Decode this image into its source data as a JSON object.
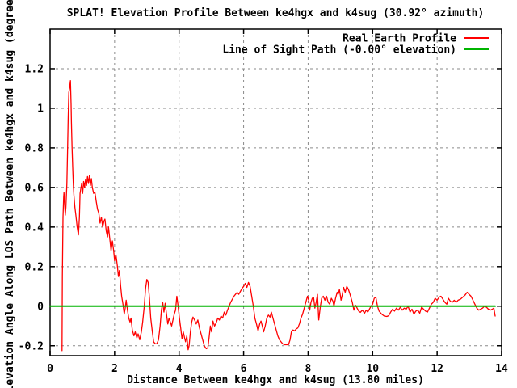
{
  "window": {
    "background": "#ffffff"
  },
  "colors": {
    "profile_red": "#ff0000",
    "los_green": "#00b400",
    "grid": "#8a8a8a",
    "border": "#000000",
    "text": "#000000"
  },
  "chart_data": {
    "type": "line",
    "title": "SPLAT! Elevation Profile Between ke4hgx and k4sug (30.92° azimuth)",
    "xlabel": "Distance Between ke4hgx and k4sug (13.80 miles)",
    "ylabel": "Elevation Angle Along LOS Path Between ke4hgx and k4sug (degrees)",
    "xlim": [
      0,
      14
    ],
    "ylim": [
      -0.25,
      1.4
    ],
    "grid": true,
    "legend_position": "top-right",
    "x_ticks": [
      {
        "v": 0,
        "label": "0"
      },
      {
        "v": 2,
        "label": "2"
      },
      {
        "v": 4,
        "label": "4"
      },
      {
        "v": 6,
        "label": "6"
      },
      {
        "v": 8,
        "label": "8"
      },
      {
        "v": 10,
        "label": "10"
      },
      {
        "v": 12,
        "label": "12"
      },
      {
        "v": 14,
        "label": "14"
      }
    ],
    "y_ticks": [
      {
        "v": -0.2,
        "label": "-0.2"
      },
      {
        "v": 0,
        "label": "0"
      },
      {
        "v": 0.2,
        "label": "0.2"
      },
      {
        "v": 0.4,
        "label": "0.4"
      },
      {
        "v": 0.6,
        "label": "0.6"
      },
      {
        "v": 0.8,
        "label": "0.8"
      },
      {
        "v": 1.0,
        "label": "1"
      },
      {
        "v": 1.2,
        "label": "1.2"
      }
    ],
    "series": [
      {
        "id": "real-earth-profile",
        "name": "Real Earth Profile",
        "color": "#ff0000",
        "width": 1.3,
        "points": [
          [
            0.37,
            -0.225
          ],
          [
            0.38,
            0.15
          ],
          [
            0.4,
            0.45
          ],
          [
            0.42,
            0.55
          ],
          [
            0.43,
            0.575
          ],
          [
            0.45,
            0.52
          ],
          [
            0.47,
            0.46
          ],
          [
            0.49,
            0.5
          ],
          [
            0.52,
            0.62
          ],
          [
            0.54,
            0.78
          ],
          [
            0.56,
            0.95
          ],
          [
            0.58,
            1.08
          ],
          [
            0.6,
            1.1
          ],
          [
            0.63,
            1.14
          ],
          [
            0.65,
            1.02
          ],
          [
            0.66,
            0.93
          ],
          [
            0.68,
            0.8
          ],
          [
            0.7,
            0.7
          ],
          [
            0.72,
            0.62
          ],
          [
            0.74,
            0.56
          ],
          [
            0.77,
            0.5
          ],
          [
            0.8,
            0.46
          ],
          [
            0.84,
            0.4
          ],
          [
            0.88,
            0.36
          ],
          [
            0.91,
            0.45
          ],
          [
            0.93,
            0.57
          ],
          [
            0.96,
            0.6
          ],
          [
            0.98,
            0.62
          ],
          [
            1.01,
            0.57
          ],
          [
            1.04,
            0.63
          ],
          [
            1.07,
            0.6
          ],
          [
            1.1,
            0.64
          ],
          [
            1.13,
            0.61
          ],
          [
            1.16,
            0.655
          ],
          [
            1.19,
            0.62
          ],
          [
            1.22,
            0.66
          ],
          [
            1.25,
            0.61
          ],
          [
            1.28,
            0.645
          ],
          [
            1.31,
            0.6
          ],
          [
            1.35,
            0.57
          ],
          [
            1.39,
            0.575
          ],
          [
            1.43,
            0.53
          ],
          [
            1.47,
            0.49
          ],
          [
            1.51,
            0.47
          ],
          [
            1.55,
            0.42
          ],
          [
            1.59,
            0.45
          ],
          [
            1.63,
            0.4
          ],
          [
            1.67,
            0.43
          ],
          [
            1.7,
            0.44
          ],
          [
            1.74,
            0.38
          ],
          [
            1.78,
            0.35
          ],
          [
            1.81,
            0.4
          ],
          [
            1.85,
            0.34
          ],
          [
            1.89,
            0.28
          ],
          [
            1.93,
            0.33
          ],
          [
            1.97,
            0.28
          ],
          [
            2.0,
            0.23
          ],
          [
            2.04,
            0.26
          ],
          [
            2.08,
            0.21
          ],
          [
            2.12,
            0.15
          ],
          [
            2.15,
            0.18
          ],
          [
            2.19,
            0.1
          ],
          [
            2.22,
            0.05
          ],
          [
            2.26,
            0.01
          ],
          [
            2.3,
            -0.04
          ],
          [
            2.33,
            -0.01
          ],
          [
            2.36,
            0.03
          ],
          [
            2.4,
            -0.02
          ],
          [
            2.44,
            -0.06
          ],
          [
            2.48,
            -0.08
          ],
          [
            2.51,
            -0.06
          ],
          [
            2.55,
            -0.12
          ],
          [
            2.6,
            -0.15
          ],
          [
            2.64,
            -0.13
          ],
          [
            2.69,
            -0.16
          ],
          [
            2.73,
            -0.14
          ],
          [
            2.78,
            -0.17
          ],
          [
            2.83,
            -0.13
          ],
          [
            2.87,
            -0.08
          ],
          [
            2.92,
            0.0
          ],
          [
            2.96,
            0.09
          ],
          [
            3.0,
            0.135
          ],
          [
            3.04,
            0.12
          ],
          [
            3.08,
            0.04
          ],
          [
            3.12,
            -0.06
          ],
          [
            3.17,
            -0.13
          ],
          [
            3.21,
            -0.18
          ],
          [
            3.26,
            -0.19
          ],
          [
            3.31,
            -0.19
          ],
          [
            3.36,
            -0.17
          ],
          [
            3.41,
            -0.1
          ],
          [
            3.45,
            -0.02
          ],
          [
            3.49,
            0.02
          ],
          [
            3.53,
            -0.03
          ],
          [
            3.57,
            0.015
          ],
          [
            3.61,
            -0.04
          ],
          [
            3.65,
            -0.09
          ],
          [
            3.69,
            -0.06
          ],
          [
            3.73,
            -0.08
          ],
          [
            3.77,
            -0.1
          ],
          [
            3.81,
            -0.07
          ],
          [
            3.85,
            -0.04
          ],
          [
            3.89,
            -0.02
          ],
          [
            3.93,
            0.05
          ],
          [
            3.97,
            0.0
          ],
          [
            4.01,
            -0.06
          ],
          [
            4.05,
            -0.11
          ],
          [
            4.09,
            -0.165
          ],
          [
            4.13,
            -0.13
          ],
          [
            4.17,
            -0.16
          ],
          [
            4.2,
            -0.18
          ],
          [
            4.24,
            -0.15
          ],
          [
            4.28,
            -0.22
          ],
          [
            4.31,
            -0.2
          ],
          [
            4.35,
            -0.13
          ],
          [
            4.39,
            -0.08
          ],
          [
            4.43,
            -0.055
          ],
          [
            4.48,
            -0.07
          ],
          [
            4.53,
            -0.09
          ],
          [
            4.58,
            -0.07
          ],
          [
            4.63,
            -0.11
          ],
          [
            4.68,
            -0.14
          ],
          [
            4.73,
            -0.17
          ],
          [
            4.78,
            -0.2
          ],
          [
            4.84,
            -0.215
          ],
          [
            4.89,
            -0.21
          ],
          [
            4.93,
            -0.16
          ],
          [
            4.97,
            -0.1
          ],
          [
            5.01,
            -0.13
          ],
          [
            5.05,
            -0.075
          ],
          [
            5.1,
            -0.1
          ],
          [
            5.15,
            -0.085
          ],
          [
            5.2,
            -0.06
          ],
          [
            5.25,
            -0.07
          ],
          [
            5.3,
            -0.05
          ],
          [
            5.35,
            -0.06
          ],
          [
            5.4,
            -0.03
          ],
          [
            5.45,
            -0.045
          ],
          [
            5.5,
            -0.02
          ],
          [
            5.55,
            0.0
          ],
          [
            5.6,
            0.02
          ],
          [
            5.65,
            0.035
          ],
          [
            5.7,
            0.05
          ],
          [
            5.75,
            0.06
          ],
          [
            5.8,
            0.07
          ],
          [
            5.85,
            0.06
          ],
          [
            5.9,
            0.075
          ],
          [
            5.95,
            0.09
          ],
          [
            6.0,
            0.1
          ],
          [
            6.05,
            0.115
          ],
          [
            6.1,
            0.095
          ],
          [
            6.15,
            0.12
          ],
          [
            6.2,
            0.1
          ],
          [
            6.25,
            0.05
          ],
          [
            6.3,
            0.0
          ],
          [
            6.35,
            -0.06
          ],
          [
            6.4,
            -0.09
          ],
          [
            6.45,
            -0.125
          ],
          [
            6.5,
            -0.09
          ],
          [
            6.54,
            -0.075
          ],
          [
            6.58,
            -0.1
          ],
          [
            6.62,
            -0.13
          ],
          [
            6.67,
            -0.1
          ],
          [
            6.72,
            -0.06
          ],
          [
            6.77,
            -0.045
          ],
          [
            6.82,
            -0.055
          ],
          [
            6.86,
            -0.03
          ],
          [
            6.91,
            -0.06
          ],
          [
            6.96,
            -0.09
          ],
          [
            7.01,
            -0.12
          ],
          [
            7.06,
            -0.15
          ],
          [
            7.11,
            -0.17
          ],
          [
            7.16,
            -0.18
          ],
          [
            7.21,
            -0.19
          ],
          [
            7.27,
            -0.195
          ],
          [
            7.33,
            -0.195
          ],
          [
            7.39,
            -0.195
          ],
          [
            7.44,
            -0.17
          ],
          [
            7.48,
            -0.13
          ],
          [
            7.53,
            -0.12
          ],
          [
            7.58,
            -0.125
          ],
          [
            7.63,
            -0.115
          ],
          [
            7.68,
            -0.11
          ],
          [
            7.73,
            -0.09
          ],
          [
            7.78,
            -0.06
          ],
          [
            7.83,
            -0.04
          ],
          [
            7.88,
            -0.01
          ],
          [
            7.93,
            0.02
          ],
          [
            7.98,
            0.05
          ],
          [
            8.02,
            0.03
          ],
          [
            8.05,
            -0.02
          ],
          [
            8.09,
            0.02
          ],
          [
            8.13,
            0.04
          ],
          [
            8.17,
            0.045
          ],
          [
            8.21,
            -0.01
          ],
          [
            8.25,
            0.02
          ],
          [
            8.29,
            0.06
          ],
          [
            8.33,
            -0.07
          ],
          [
            8.38,
            0.0
          ],
          [
            8.42,
            0.04
          ],
          [
            8.47,
            0.05
          ],
          [
            8.52,
            0.03
          ],
          [
            8.57,
            0.05
          ],
          [
            8.62,
            0.02
          ],
          [
            8.67,
            0.01
          ],
          [
            8.72,
            0.04
          ],
          [
            8.77,
            0.025
          ],
          [
            8.8,
            0.0
          ],
          [
            8.85,
            0.04
          ],
          [
            8.9,
            0.07
          ],
          [
            8.93,
            0.06
          ],
          [
            8.97,
            0.084
          ],
          [
            9.02,
            0.03
          ],
          [
            9.06,
            0.06
          ],
          [
            9.1,
            0.095
          ],
          [
            9.15,
            0.07
          ],
          [
            9.2,
            0.1
          ],
          [
            9.25,
            0.085
          ],
          [
            9.3,
            0.06
          ],
          [
            9.37,
            0.02
          ],
          [
            9.42,
            -0.02
          ],
          [
            9.47,
            0.005
          ],
          [
            9.52,
            -0.01
          ],
          [
            9.57,
            -0.025
          ],
          [
            9.62,
            -0.031
          ],
          [
            9.68,
            -0.02
          ],
          [
            9.75,
            -0.035
          ],
          [
            9.8,
            -0.02
          ],
          [
            9.85,
            -0.03
          ],
          [
            9.9,
            -0.015
          ],
          [
            9.95,
            0.0
          ],
          [
            10.0,
            0.01
          ],
          [
            10.05,
            0.04
          ],
          [
            10.1,
            0.045
          ],
          [
            10.15,
            0.0
          ],
          [
            10.2,
            -0.025
          ],
          [
            10.28,
            -0.04
          ],
          [
            10.36,
            -0.05
          ],
          [
            10.44,
            -0.052
          ],
          [
            10.5,
            -0.048
          ],
          [
            10.56,
            -0.03
          ],
          [
            10.62,
            -0.015
          ],
          [
            10.68,
            -0.025
          ],
          [
            10.74,
            -0.01
          ],
          [
            10.8,
            -0.02
          ],
          [
            10.86,
            -0.005
          ],
          [
            10.92,
            -0.02
          ],
          [
            10.98,
            -0.01
          ],
          [
            11.04,
            -0.015
          ],
          [
            11.1,
            0.0
          ],
          [
            11.16,
            -0.03
          ],
          [
            11.22,
            -0.015
          ],
          [
            11.28,
            -0.04
          ],
          [
            11.34,
            -0.025
          ],
          [
            11.4,
            -0.02
          ],
          [
            11.46,
            -0.035
          ],
          [
            11.52,
            -0.005
          ],
          [
            11.58,
            -0.015
          ],
          [
            11.64,
            -0.025
          ],
          [
            11.7,
            -0.03
          ],
          [
            11.76,
            -0.01
          ],
          [
            11.82,
            0.01
          ],
          [
            11.88,
            0.02
          ],
          [
            11.94,
            0.04
          ],
          [
            12.0,
            0.03
          ],
          [
            12.06,
            0.045
          ],
          [
            12.12,
            0.05
          ],
          [
            12.18,
            0.035
          ],
          [
            12.24,
            0.02
          ],
          [
            12.3,
            0.01
          ],
          [
            12.35,
            0.04
          ],
          [
            12.41,
            0.025
          ],
          [
            12.47,
            0.02
          ],
          [
            12.53,
            0.03
          ],
          [
            12.59,
            0.02
          ],
          [
            12.65,
            0.03
          ],
          [
            12.72,
            0.035
          ],
          [
            12.79,
            0.045
          ],
          [
            12.86,
            0.055
          ],
          [
            12.93,
            0.07
          ],
          [
            12.99,
            0.06
          ],
          [
            13.05,
            0.05
          ],
          [
            13.11,
            0.03
          ],
          [
            13.17,
            0.01
          ],
          [
            13.23,
            -0.01
          ],
          [
            13.29,
            -0.02
          ],
          [
            13.35,
            -0.015
          ],
          [
            13.41,
            -0.01
          ],
          [
            13.47,
            0.0
          ],
          [
            13.53,
            -0.005
          ],
          [
            13.59,
            -0.015
          ],
          [
            13.65,
            -0.02
          ],
          [
            13.71,
            -0.015
          ],
          [
            13.76,
            -0.01
          ],
          [
            13.8,
            -0.05
          ]
        ]
      },
      {
        "id": "line-of-sight-path",
        "name": "Line of Sight Path (-0.00° elevation)",
        "color": "#00b400",
        "width": 2,
        "points": [
          [
            0,
            0
          ],
          [
            13.8,
            0
          ]
        ]
      }
    ]
  }
}
